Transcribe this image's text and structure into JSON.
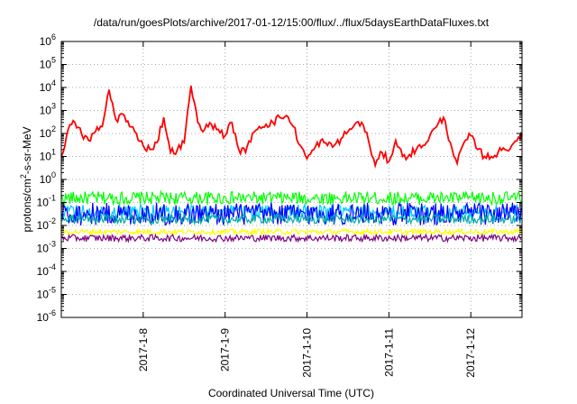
{
  "chart_data": {
    "type": "line",
    "title": "/data/run/goesPlots/archive/2017-01-12/15:00/flux/../flux/5daysEarthDataFluxes.txt",
    "xlabel": "Coordinated Universal Time (UTC)",
    "ylabel_parts": [
      "protons/cm",
      "2",
      "-s-sr-MeV"
    ],
    "x_ticks": [
      "2017-1-8",
      "2017-1-9",
      "2017-1-10",
      "2017-1-11",
      "2017-1-12"
    ],
    "xlim": [
      "2017-01-07T00:00",
      "2017-01-12T15:00"
    ],
    "yscale": "log",
    "ylim": [
      1e-06,
      1000000.0
    ],
    "y_ticks": [
      {
        "base": "10",
        "exp": "-6"
      },
      {
        "base": "10",
        "exp": "-5"
      },
      {
        "base": "10",
        "exp": "-4"
      },
      {
        "base": "10",
        "exp": "-3"
      },
      {
        "base": "10",
        "exp": "-2"
      },
      {
        "base": "10",
        "exp": "-1"
      },
      {
        "base": "10",
        "exp": "0"
      },
      {
        "base": "10",
        "exp": "1"
      },
      {
        "base": "10",
        "exp": "2"
      },
      {
        "base": "10",
        "exp": "3"
      },
      {
        "base": "10",
        "exp": "4"
      },
      {
        "base": "10",
        "exp": "5"
      },
      {
        "base": "10",
        "exp": "6"
      }
    ],
    "grid": true,
    "series": [
      {
        "color": "#ff0000",
        "x": [
          "2017-01-07T00:00",
          "2017-01-07T02:00",
          "2017-01-07T04:00",
          "2017-01-07T06:00",
          "2017-01-07T08:00",
          "2017-01-07T10:00",
          "2017-01-07T12:00",
          "2017-01-07T14:00",
          "2017-01-07T16:00",
          "2017-01-07T18:00",
          "2017-01-07T20:00",
          "2017-01-07T22:00",
          "2017-01-08T00:00",
          "2017-01-08T02:00",
          "2017-01-08T04:00",
          "2017-01-08T06:00",
          "2017-01-08T08:00",
          "2017-01-08T10:00",
          "2017-01-08T12:00",
          "2017-01-08T14:00",
          "2017-01-08T16:00",
          "2017-01-08T18:00",
          "2017-01-08T20:00",
          "2017-01-08T22:00",
          "2017-01-09T00:00",
          "2017-01-09T02:00",
          "2017-01-09T04:00",
          "2017-01-09T06:00",
          "2017-01-09T08:00",
          "2017-01-09T10:00",
          "2017-01-09T12:00",
          "2017-01-09T14:00",
          "2017-01-09T16:00",
          "2017-01-09T18:00",
          "2017-01-09T20:00",
          "2017-01-09T22:00",
          "2017-01-10T00:00",
          "2017-01-10T02:00",
          "2017-01-10T04:00",
          "2017-01-10T06:00",
          "2017-01-10T08:00",
          "2017-01-10T10:00",
          "2017-01-10T12:00",
          "2017-01-10T14:00",
          "2017-01-10T16:00",
          "2017-01-10T18:00",
          "2017-01-10T20:00",
          "2017-01-10T22:00",
          "2017-01-11T00:00",
          "2017-01-11T02:00",
          "2017-01-11T04:00",
          "2017-01-11T06:00",
          "2017-01-11T08:00",
          "2017-01-11T10:00",
          "2017-01-11T12:00",
          "2017-01-11T14:00",
          "2017-01-11T16:00",
          "2017-01-11T18:00",
          "2017-01-11T20:00",
          "2017-01-11T22:00",
          "2017-01-12T00:00",
          "2017-01-12T02:00",
          "2017-01-12T04:00",
          "2017-01-12T06:00",
          "2017-01-12T08:00",
          "2017-01-12T10:00",
          "2017-01-12T12:00",
          "2017-01-12T14:00",
          "2017-01-12T15:00"
        ],
        "y": [
          10,
          150,
          300,
          90,
          50,
          120,
          200,
          8000,
          400,
          700,
          200,
          100,
          30,
          20,
          40,
          500,
          15,
          20,
          40,
          12000,
          300,
          150,
          250,
          150,
          80,
          300,
          20,
          15,
          100,
          200,
          250,
          300,
          500,
          600,
          200,
          30,
          8,
          20,
          50,
          30,
          30,
          60,
          120,
          250,
          300,
          50,
          4,
          15,
          6,
          50,
          10,
          12,
          20,
          30,
          80,
          200,
          500,
          40,
          5,
          40,
          80,
          20,
          10,
          10,
          15,
          20,
          30,
          70,
          80
        ]
      },
      {
        "color": "#00ff00",
        "x": [
          "2017-01-07T00:00",
          "2017-01-12T15:00"
        ],
        "y_range": [
          0.08,
          0.3
        ]
      },
      {
        "color": "#00c8ff",
        "x": [
          "2017-01-07T00:00",
          "2017-01-12T15:00"
        ],
        "y_range": [
          0.02,
          0.08
        ]
      },
      {
        "color": "#0000ff",
        "x": [
          "2017-01-07T00:00",
          "2017-01-12T15:00"
        ],
        "y_range": [
          0.01,
          0.1
        ]
      },
      {
        "color": "#00aaaa",
        "x": [
          "2017-01-07T00:00",
          "2017-01-12T15:00"
        ],
        "y_range": [
          0.012,
          0.03
        ]
      },
      {
        "color": "#ffff00",
        "x": [
          "2017-01-07T00:00",
          "2017-01-12T15:00"
        ],
        "y_range": [
          0.004,
          0.007
        ]
      },
      {
        "color": "#800080",
        "x": [
          "2017-01-07T00:00",
          "2017-01-12T15:00"
        ],
        "y_range": [
          0.002,
          0.004
        ]
      }
    ]
  }
}
